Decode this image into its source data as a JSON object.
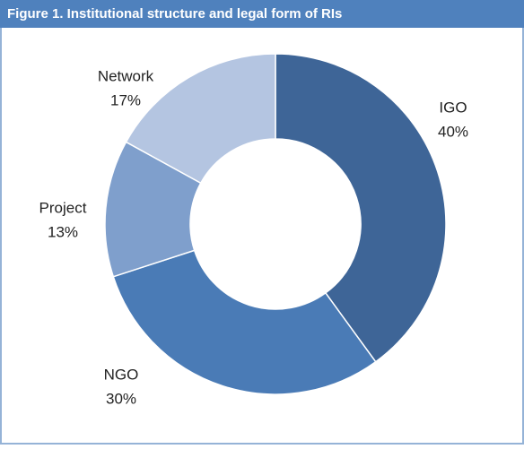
{
  "chart_data": {
    "type": "donut",
    "title": "Figure 1. Institutional structure and legal form of RIs",
    "categories": [
      "IGO",
      "NGO",
      "Project",
      "Network"
    ],
    "values": [
      40,
      30,
      13,
      17
    ],
    "value_labels": [
      "40%",
      "30%",
      "13%",
      "17%"
    ],
    "colors": [
      "#3e6597",
      "#4a7bb6",
      "#7f9fcc",
      "#b4c5e1"
    ]
  }
}
